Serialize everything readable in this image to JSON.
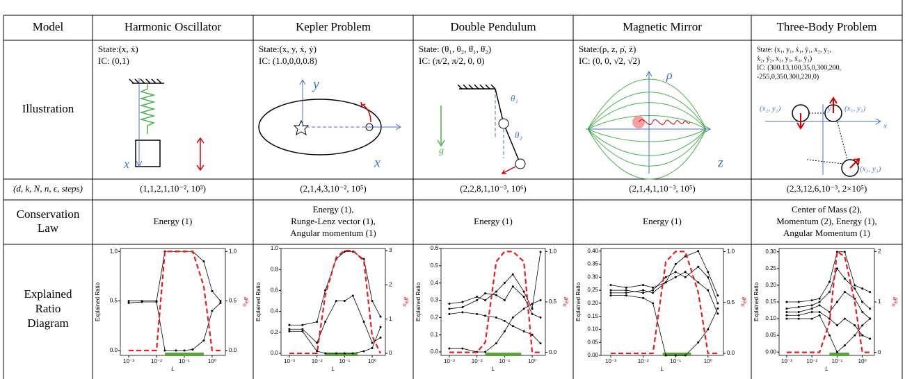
{
  "header": {
    "label": "Model",
    "models": [
      "Harmonic Oscillator",
      "Kepler Problem",
      "Double Pendulum",
      "Magnetic Mirror",
      "Three-Body Problem"
    ]
  },
  "illustration": {
    "label": "Illustration",
    "cells": [
      {
        "text": [
          "State:(x, ẋ)",
          "IC:    (0,1)"
        ],
        "labels": [
          "x"
        ]
      },
      {
        "text": [
          "State:(x, y, ẋ, ẏ)",
          "IC:    (1.0,0,0,0.8)"
        ],
        "labels": [
          "y",
          "x"
        ]
      },
      {
        "text": [
          "State: (θ₁, θ₂, θ̇₁, θ̇₂)",
          "IC:    (π/2, π/2, 0, 0)"
        ],
        "labels": [
          "θ₁",
          "θ₂",
          "g"
        ]
      },
      {
        "text": [
          "State:(ρ, z, ρ̇, ż)",
          "IC:    (0, 0, √2, √2)"
        ],
        "labels": [
          "ρ",
          "z"
        ]
      },
      {
        "text": [
          "State: (x₁, y₁, ẋ₁, ẏ₁, x₂, y₂,",
          "ẋ₂, ẏ₂, x₃, y₃, ẋ₃, ẏ₃)",
          "IC: (300.13,100,35,0,300,200,",
          "-255,0,350,300,220,0)"
        ],
        "labels": [
          "(x₂, y₂)",
          "(x₁, y₁)",
          "x",
          "y",
          "(x₃, y₃)"
        ]
      }
    ]
  },
  "params": {
    "label": "(d, k, N, n, ϵ, steps)",
    "values": [
      "(1,1,2,1,10⁻², 10³)",
      "(2,1,4,3,10⁻², 10⁵)",
      "(2,2,8,1,10⁻³, 10⁶)",
      "(2,1,4,1,10⁻³, 10⁵)",
      "(2,3,12,6,10⁻³, 2×10⁵)"
    ]
  },
  "conservation": {
    "label": [
      "Conservation",
      "Law"
    ],
    "values": [
      [
        "Energy (1)"
      ],
      [
        "Energy (1),",
        "Runge-Lenz vector (1),",
        "Angular momentum (1)"
      ],
      [
        "Energy (1)"
      ],
      [
        "Energy (1)"
      ],
      [
        "Center of Mass (2),",
        "Momentum (2), Energy (1),",
        "Angular Momentum (1)"
      ]
    ]
  },
  "diagram": {
    "label": [
      "Explained",
      "Ratio",
      "Diagram"
    ],
    "ylabel": "Explained Ratio",
    "y2label": "n",
    "y2label_sub": "eff",
    "xlabel": "L",
    "log_x": true,
    "xlim": [
      0.0005,
      3
    ],
    "xticks": [
      {
        "value": 0.001,
        "label": "10⁻³"
      },
      {
        "value": 0.01,
        "label": "10⁻²"
      },
      {
        "value": 0.1,
        "label": "10⁻¹"
      },
      {
        "value": 1,
        "label": "10⁰"
      }
    ],
    "line_color": "#000000",
    "neff_color": "#e02020",
    "band_color": "#5aa33a",
    "charts": [
      {
        "x": [
          0.001,
          0.003,
          0.01,
          0.02,
          0.05,
          0.1,
          0.2,
          0.5,
          1,
          2
        ],
        "ylim": [
          -0.05,
          1.03
        ],
        "yticks": [
          {
            "value": 0,
            "label": "0.0"
          },
          {
            "value": 0.5,
            "label": "0.5"
          },
          {
            "value": 1,
            "label": "1.0"
          }
        ],
        "y2lim": [
          -0.05,
          1.03
        ],
        "y2ticks": [
          {
            "value": 0,
            "label": "0.0"
          },
          {
            "value": 0.5,
            "label": "0.5"
          },
          {
            "value": 1,
            "label": "1.0"
          }
        ],
        "series": [
          {
            "values": [
              0.5,
              0.5,
              0.5,
              1.0,
              1.0,
              1.0,
              1.0,
              0.9,
              0.6,
              0.5
            ]
          },
          {
            "values": [
              0.48,
              0.49,
              0.49,
              0.0,
              0.0,
              0.0,
              0.01,
              0.1,
              0.4,
              0.48
            ]
          }
        ],
        "neff": [
          0,
          0,
          0,
          1,
          1,
          1,
          1,
          0.65,
          0,
          0
        ],
        "band": [
          0.02,
          0.5
        ]
      },
      {
        "x": [
          0.001,
          0.003,
          0.01,
          0.02,
          0.05,
          0.1,
          0.2,
          0.5,
          1,
          2
        ],
        "ylim": [
          -0.02,
          1.0
        ],
        "yticks": [
          {
            "value": 0,
            "label": "0.0"
          },
          {
            "value": 0.2,
            "label": "0.2"
          },
          {
            "value": 0.4,
            "label": "0.4"
          },
          {
            "value": 0.6,
            "label": "0.6"
          },
          {
            "value": 0.8,
            "label": "0.8"
          },
          {
            "value": 1,
            "label": "1.0"
          }
        ],
        "y2lim": [
          -0.06,
          3.06
        ],
        "y2ticks": [
          0,
          1,
          2,
          3
        ],
        "series": [
          {
            "values": [
              0.27,
              0.27,
              0.3,
              0.6,
              0.9,
              0.97,
              0.97,
              0.9,
              0.5,
              0.35
            ]
          },
          {
            "values": [
              0.23,
              0.23,
              0.1,
              0.3,
              0.5,
              0.5,
              0.55,
              0.3,
              0.1,
              0.15
            ]
          },
          {
            "values": [
              0.21,
              0.21,
              0.02,
              0.0,
              0.0,
              0.0,
              0.0,
              0.02,
              0.05,
              0.25
            ]
          }
        ],
        "neff": [
          0,
          0,
          0,
          1.7,
          2.8,
          3,
          3,
          2.7,
          0.5,
          0
        ],
        "band": [
          0.02,
          0.3
        ]
      },
      {
        "x": [
          0.001,
          0.003,
          0.01,
          0.02,
          0.05,
          0.1,
          0.2,
          0.5,
          1,
          2
        ],
        "ylim": [
          -0.02,
          0.6
        ],
        "yticks": [
          {
            "value": 0,
            "label": "0.0"
          },
          {
            "value": 0.1,
            "label": "0.1"
          },
          {
            "value": 0.2,
            "label": "0.2"
          },
          {
            "value": 0.3,
            "label": "0.3"
          },
          {
            "value": 0.4,
            "label": "0.4"
          },
          {
            "value": 0.5,
            "label": "0.5"
          },
          {
            "value": 0.6,
            "label": "0.6"
          }
        ],
        "y2lim": [
          -0.03,
          1.03
        ],
        "y2ticks": [
          {
            "value": 0,
            "label": "0.0"
          },
          {
            "value": 0.5,
            "label": "0.5"
          },
          {
            "value": 1,
            "label": "1.0"
          }
        ],
        "series": [
          {
            "values": [
              0.28,
              0.29,
              0.32,
              0.3,
              0.35,
              0.4,
              0.45,
              0.35,
              0.25,
              0.58
            ]
          },
          {
            "values": [
              0.25,
              0.26,
              0.3,
              0.34,
              0.33,
              0.3,
              0.38,
              0.32,
              0.22,
              0.2
            ]
          },
          {
            "values": [
              0.22,
              0.23,
              0.22,
              0.21,
              0.2,
              0.18,
              0.15,
              0.12,
              0.1,
              0.05
            ]
          },
          {
            "values": [
              0.02,
              0.02,
              0.0,
              0.0,
              0.05,
              0.12,
              0.2,
              0.25,
              0.28,
              0.3
            ]
          }
        ],
        "neff": [
          0,
          0,
          0,
          0.1,
          0.9,
          1,
          1,
          0.9,
          0,
          0
        ],
        "band": [
          0.02,
          0.4
        ]
      },
      {
        "x": [
          0.001,
          0.003,
          0.01,
          0.02,
          0.05,
          0.1,
          0.2,
          0.5,
          1,
          2
        ],
        "ylim": [
          0,
          0.41
        ],
        "yticks": [
          {
            "value": 0,
            "label": "0.00"
          },
          {
            "value": 0.05,
            "label": "0.05"
          },
          {
            "value": 0.1,
            "label": "0.10"
          },
          {
            "value": 0.15,
            "label": "0.15"
          },
          {
            "value": 0.2,
            "label": "0.20"
          },
          {
            "value": 0.25,
            "label": "0.25"
          },
          {
            "value": 0.3,
            "label": "0.30"
          },
          {
            "value": 0.35,
            "label": "0.35"
          },
          {
            "value": 0.4,
            "label": "0.40"
          }
        ],
        "y2lim": [
          -0.02,
          1.03
        ],
        "y2ticks": [
          {
            "value": 0,
            "label": "0.0"
          },
          {
            "value": 0.5,
            "label": "0.5"
          },
          {
            "value": 1,
            "label": "1.0"
          }
        ],
        "series": [
          {
            "values": [
              0.27,
              0.26,
              0.27,
              0.26,
              0.28,
              0.35,
              0.38,
              0.4,
              0.32,
              0.23
            ]
          },
          {
            "values": [
              0.25,
              0.25,
              0.24,
              0.25,
              0.3,
              0.32,
              0.3,
              0.34,
              0.3,
              0.2
            ]
          },
          {
            "values": [
              0.24,
              0.24,
              0.25,
              0.24,
              0.28,
              0.3,
              0.32,
              0.28,
              0.25,
              0.16
            ]
          },
          {
            "values": [
              0.23,
              0.23,
              0.22,
              0.2,
              0.0,
              0.0,
              0.0,
              0.05,
              0.1,
              0.18
            ]
          }
        ],
        "neff": [
          0,
          0,
          0,
          0,
          0.9,
          1,
          1,
          0.6,
          0,
          0
        ],
        "band": [
          0.04,
          0.3
        ]
      },
      {
        "x": [
          0.001,
          0.003,
          0.01,
          0.02,
          0.05,
          0.1,
          0.2,
          0.5,
          1,
          2
        ],
        "ylim": [
          -0.01,
          0.31
        ],
        "yticks": [
          {
            "value": 0,
            "label": "0.00"
          },
          {
            "value": 0.05,
            "label": "0.05"
          },
          {
            "value": 0.1,
            "label": "0.10"
          },
          {
            "value": 0.15,
            "label": "0.15"
          },
          {
            "value": 0.2,
            "label": "0.20"
          },
          {
            "value": 0.25,
            "label": "0.25"
          },
          {
            "value": 0.3,
            "label": "0.30"
          }
        ],
        "y2lim": [
          -0.06,
          2.06
        ],
        "y2ticks": [
          0,
          1,
          2
        ],
        "series": [
          {
            "values": [
              0.15,
              0.15,
              0.155,
              0.16,
              0.21,
              0.3,
              0.3,
              0.2,
              0.19,
              0.18
            ]
          },
          {
            "values": [
              0.13,
              0.135,
              0.14,
              0.15,
              0.18,
              0.25,
              0.22,
              0.19,
              0.15,
              0.13
            ]
          },
          {
            "values": [
              0.12,
              0.12,
              0.13,
              0.14,
              0.12,
              0.15,
              0.18,
              0.16,
              0.12,
              0.1
            ]
          },
          {
            "values": [
              0.11,
              0.11,
              0.12,
              0.12,
              0.1,
              0.08,
              0.1,
              0.08,
              0.05,
              0.04
            ]
          },
          {
            "values": [
              0.1,
              0.1,
              0.1,
              0.11,
              0.05,
              0.0,
              0.02,
              0.05,
              0.08,
              0.1
            ]
          }
        ],
        "neff": [
          0,
          0,
          0,
          0,
          0.6,
          2,
          1.9,
          1.0,
          0,
          0
        ],
        "band": [
          0.05,
          0.3
        ]
      }
    ]
  }
}
